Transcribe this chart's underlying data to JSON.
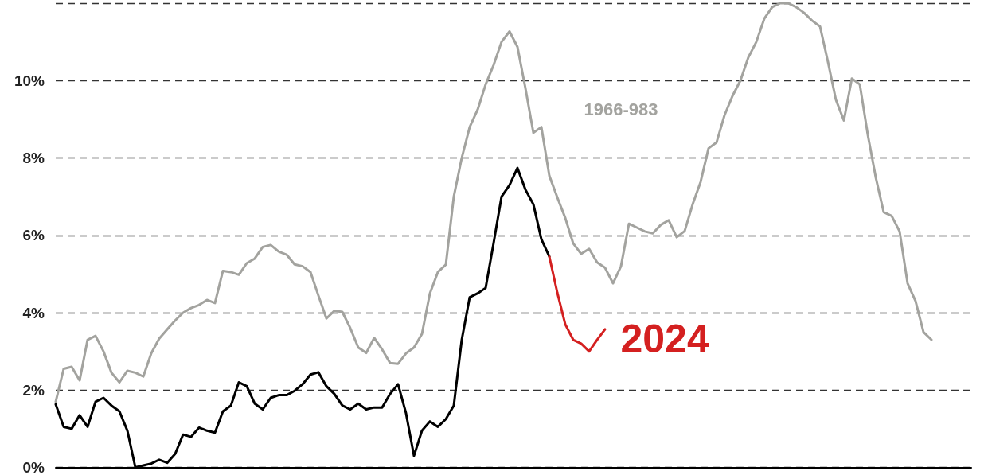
{
  "chart_data": {
    "type": "line",
    "categories": [
      null,
      null,
      null,
      null,
      null,
      null,
      null,
      null,
      null,
      null,
      null,
      null,
      null,
      null,
      null,
      null,
      null,
      null,
      null,
      null,
      null,
      null,
      null,
      null,
      null,
      null,
      null,
      null,
      null,
      null,
      null,
      null,
      null,
      null,
      null,
      null,
      null,
      null,
      null,
      null,
      null,
      null,
      null,
      null,
      null,
      null,
      null,
      null,
      null,
      null,
      null,
      null,
      null,
      null,
      null,
      null,
      null,
      null,
      null,
      null,
      null,
      null,
      null,
      null,
      null,
      null,
      null,
      null,
      null,
      null,
      null,
      null,
      null,
      null,
      null,
      null,
      null,
      null,
      null,
      null,
      null,
      null,
      null,
      null,
      null,
      null,
      null,
      null,
      null,
      null,
      null,
      null,
      null,
      null,
      null,
      null,
      null,
      null,
      null,
      null,
      null,
      null,
      null,
      null,
      null,
      null,
      null,
      null,
      null,
      null,
      null,
      null,
      null,
      null,
      null,
      null
    ],
    "series": [
      {
        "name": "1966-983",
        "color": "#a3a39f",
        "values": [
          1.7,
          2.55,
          2.6,
          2.25,
          3.3,
          3.4,
          3.0,
          2.45,
          2.2,
          2.5,
          2.45,
          2.35,
          2.95,
          3.33,
          3.57,
          3.8,
          4.0,
          4.12,
          4.2,
          4.33,
          4.25,
          5.08,
          5.05,
          4.98,
          5.28,
          5.4,
          5.7,
          5.75,
          5.58,
          5.5,
          5.25,
          5.2,
          5.05,
          4.44,
          3.85,
          4.05,
          4.02,
          3.6,
          3.1,
          2.96,
          3.35,
          3.05,
          2.7,
          2.68,
          2.95,
          3.1,
          3.45,
          4.5,
          5.05,
          5.24,
          7.0,
          8.0,
          8.8,
          9.25,
          9.9,
          10.4,
          11.0,
          11.27,
          10.87,
          9.8,
          8.65,
          8.8,
          7.54,
          6.98,
          6.45,
          5.79,
          5.52,
          5.65,
          5.3,
          5.16,
          4.76,
          5.2,
          6.3,
          6.2,
          6.1,
          6.05,
          6.27,
          6.39,
          5.95,
          6.11,
          6.8,
          7.38,
          8.25,
          8.4,
          9.1,
          9.6,
          10.0,
          10.6,
          11.0,
          11.6,
          11.9,
          12.0,
          12.0,
          11.9,
          11.75,
          11.55,
          11.4,
          10.48,
          9.5,
          8.97,
          10.05,
          9.9,
          8.6,
          7.5,
          6.6,
          6.5,
          6.1,
          4.76,
          4.3,
          3.5,
          3.3,
          null,
          null,
          null,
          null,
          null
        ]
      },
      {
        "color": "#000000",
        "values": [
          1.63,
          1.05,
          1.0,
          1.35,
          1.05,
          1.7,
          1.8,
          1.6,
          1.45,
          0.95,
          0.0,
          0.05,
          0.1,
          0.2,
          0.12,
          0.35,
          0.85,
          0.79,
          1.03,
          0.95,
          0.9,
          1.45,
          1.6,
          2.2,
          2.1,
          1.65,
          1.5,
          1.8,
          1.87,
          1.87,
          1.98,
          2.15,
          2.4,
          2.46,
          2.1,
          1.9,
          1.6,
          1.5,
          1.65,
          1.5,
          1.55,
          1.55,
          1.9,
          2.15,
          1.4,
          0.3,
          0.95,
          1.19,
          1.05,
          1.25,
          1.6,
          3.3,
          4.4,
          4.5,
          4.64,
          5.8,
          7.0,
          7.3,
          7.74,
          7.18,
          6.8,
          5.9,
          5.45,
          null,
          null,
          null,
          null,
          null,
          null,
          null,
          null,
          null,
          null,
          null,
          null,
          null,
          null,
          null,
          null,
          null,
          null,
          null,
          null,
          null,
          null,
          null,
          null,
          null,
          null,
          null,
          null,
          null,
          null,
          null,
          null,
          null,
          null,
          null,
          null,
          null,
          null,
          null,
          null,
          null,
          null,
          null,
          null,
          null,
          null,
          null,
          null,
          null,
          null,
          null,
          null,
          null
        ]
      },
      {
        "name": "2024",
        "color": "#d42020",
        "values": [
          null,
          null,
          null,
          null,
          null,
          null,
          null,
          null,
          null,
          null,
          null,
          null,
          null,
          null,
          null,
          null,
          null,
          null,
          null,
          null,
          null,
          null,
          null,
          null,
          null,
          null,
          null,
          null,
          null,
          null,
          null,
          null,
          null,
          null,
          null,
          null,
          null,
          null,
          null,
          null,
          null,
          null,
          null,
          null,
          null,
          null,
          null,
          null,
          null,
          null,
          null,
          null,
          null,
          null,
          null,
          null,
          null,
          null,
          null,
          null,
          null,
          null,
          5.45,
          4.52,
          3.7,
          3.3,
          3.2,
          3.0,
          3.3,
          3.57,
          null,
          null,
          null,
          null,
          null,
          null,
          null,
          null,
          null,
          null,
          null,
          null,
          null,
          null,
          null,
          null,
          null,
          null,
          null,
          null,
          null,
          null,
          null,
          null,
          null,
          null,
          null,
          null,
          null,
          null,
          null,
          null,
          null,
          null,
          null,
          null,
          null,
          null,
          null,
          null,
          null,
          null,
          null,
          null,
          null,
          null
        ]
      }
    ],
    "ylim": [
      0,
      12
    ],
    "yticks": [
      {
        "value": 0,
        "label": "0%"
      },
      {
        "value": 2,
        "label": "2%"
      },
      {
        "value": 4,
        "label": "4%"
      },
      {
        "value": 6,
        "label": "6%"
      },
      {
        "value": 8,
        "label": "8%"
      },
      {
        "value": 10,
        "label": "10%"
      },
      {
        "value": 12,
        "label": null
      }
    ],
    "grid": "y",
    "legend": false,
    "marker": "none",
    "line_style": "solid",
    "tick_labels": "y"
  }
}
